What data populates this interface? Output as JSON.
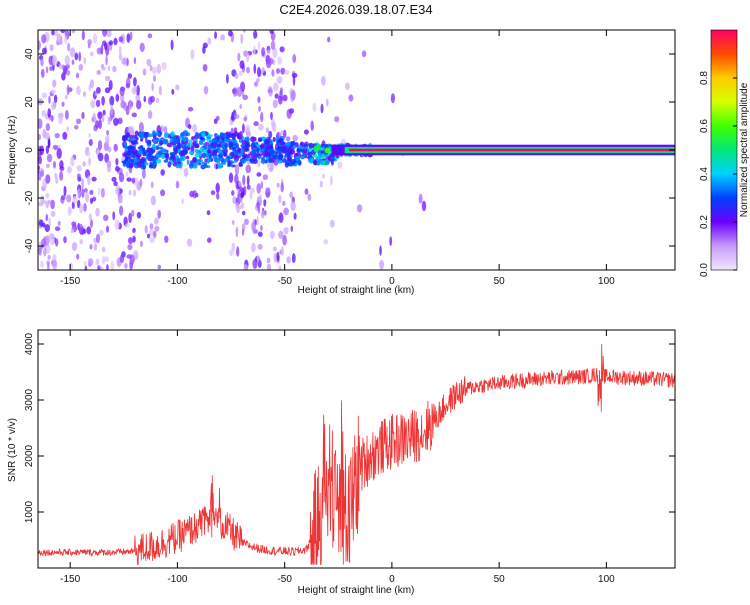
{
  "title": "C2E4.2026.039.18.07.E34",
  "chart_data": [
    {
      "type": "heatmap",
      "title": "C2E4.2026.039.18.07.E34",
      "xlabel": "Height of straight line (km)",
      "ylabel": "Frequency (Hz)",
      "xlim": [
        -165,
        132
      ],
      "ylim": [
        -50,
        50
      ],
      "xticks": [
        -150,
        -100,
        -50,
        0,
        50,
        100
      ],
      "yticks": [
        -40,
        -20,
        0,
        20,
        40
      ],
      "xtick_labels": [
        "-150",
        "-100",
        "-50",
        "0",
        "50",
        "100"
      ],
      "ytick_labels": [
        "-40",
        "-20",
        "0",
        "20",
        "40"
      ],
      "description_of_content": "Scattered low-amplitude purple speckle across frequencies for heights -165 to -45 km; a mid-amplitude blue/cyan band near 0 Hz from -120 to -20 km narrowing toward 0 Hz; a single high-amplitude carrier line at 0 Hz from about -20 km to 132 km.",
      "carrier_line": {
        "frequency": 0,
        "x_start": -20,
        "x_end": 132,
        "amplitude": 1.0
      },
      "colorbar": {
        "label": "Normalized spectral amplitude",
        "range": [
          0,
          1
        ],
        "ticks": [
          0.0,
          0.2,
          0.4,
          0.6,
          0.8
        ],
        "tick_labels": [
          "0.0",
          "0.2",
          "0.4",
          "0.6",
          "0.8"
        ]
      }
    },
    {
      "type": "line",
      "xlabel": "Height of straight line (km)",
      "ylabel": "SNR (10 * v/v)",
      "xlim": [
        -165,
        132
      ],
      "ylim": [
        0,
        4250
      ],
      "xticks": [
        -150,
        -100,
        -50,
        0,
        50,
        100
      ],
      "yticks": [
        1000,
        2000,
        3000,
        4000
      ],
      "xtick_labels": [
        "-150",
        "-100",
        "-50",
        "0",
        "50",
        "100"
      ],
      "ytick_labels": [
        "1000",
        "2000",
        "3000",
        "4000"
      ],
      "color": "#ee3333",
      "series": [
        {
          "name": "SNR",
          "x": [
            -165,
            -150,
            -140,
            -130,
            -120,
            -110,
            -100,
            -95,
            -90,
            -85,
            -80,
            -75,
            -70,
            -65,
            -60,
            -55,
            -50,
            -45,
            -40,
            -35,
            -30,
            -27,
            -25,
            -22,
            -20,
            -18,
            -15,
            -10,
            -5,
            0,
            5,
            10,
            15,
            20,
            25,
            30,
            35,
            40,
            50,
            60,
            70,
            80,
            90,
            95,
            100,
            110,
            120,
            132
          ],
          "y": [
            280,
            280,
            280,
            280,
            300,
            400,
            550,
            650,
            750,
            850,
            800,
            650,
            450,
            380,
            330,
            310,
            300,
            290,
            330,
            700,
            1600,
            1400,
            1200,
            1000,
            900,
            1300,
            1800,
            2000,
            2150,
            2250,
            2300,
            2350,
            2450,
            2650,
            2900,
            3100,
            3200,
            3250,
            3300,
            3350,
            3380,
            3400,
            3420,
            3450,
            3420,
            3400,
            3380,
            3350
          ]
        }
      ]
    }
  ]
}
